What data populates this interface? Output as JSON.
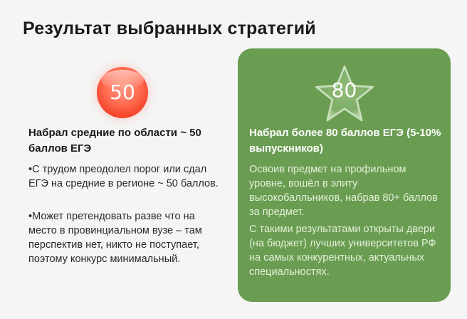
{
  "title": "Результат выбранных стратегий",
  "left": {
    "badge": "50",
    "heading": "Набрал средние по области ~ 50 баллов ЕГЭ",
    "paragraphs": [
      "•С трудом преодолел порог или сдал ЕГЭ на средние в регионе ~ 50 баллов.",
      "•Может претендовать разве что на место в провинциальном вузе – там перспектив нет, никто не поступает, поэтому конкурс минимальный."
    ]
  },
  "right": {
    "badge": "80",
    "heading": "Набрал более 80 баллов ЕГЭ (5-10% выпускников)",
    "paragraphs": [
      "Освоив предмет на профильном уровне, вошёл в элиту высокобалльников, набрав 80+ баллов за предмет.",
      "С такими результатами открыты двери (на бюджет) лучших университетов РФ на самых конкурентных, актуальных специальностях."
    ]
  },
  "colors": {
    "accent_green": "#6a9d52",
    "badge_red": "#f23a22"
  }
}
